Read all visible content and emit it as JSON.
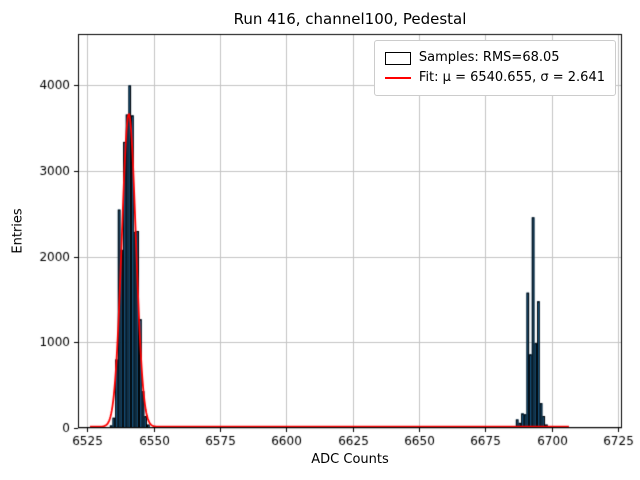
{
  "title": "Run 416, channel100, Pedestal",
  "axes": {
    "xlabel": "ADC Counts",
    "ylabel": "Entries"
  },
  "legend": {
    "samples_label": "Samples: RMS=68.05",
    "fit_label": "Fit: μ = 6540.655, σ = 2.641"
  },
  "colors": {
    "background": "#ffffff",
    "bar_fill": "#1f77b4",
    "bar_edge": "#000000",
    "fit_line": "#ff0000",
    "grid": "#c4c4c4",
    "axis": "#000000",
    "tick_text": "#000000"
  },
  "chart_data": {
    "type": "bar",
    "title": "Run 416, channel100, Pedestal",
    "xlabel": "ADC Counts",
    "ylabel": "Entries",
    "xlim": [
      6521.5,
      6726.5
    ],
    "ylim": [
      0,
      4600
    ],
    "xticks": [
      6525,
      6550,
      6575,
      6600,
      6625,
      6650,
      6675,
      6700,
      6725
    ],
    "yticks": [
      0,
      1000,
      2000,
      3000,
      4000
    ],
    "grid": true,
    "legend_position": "upper right",
    "bin_width": 1,
    "bars": [
      [
        6534,
        30
      ],
      [
        6535,
        120
      ],
      [
        6536,
        800
      ],
      [
        6537,
        2550
      ],
      [
        6538,
        2080
      ],
      [
        6539,
        3340
      ],
      [
        6540,
        3660
      ],
      [
        6541,
        4000
      ],
      [
        6542,
        3650
      ],
      [
        6543,
        2290
      ],
      [
        6544,
        2300
      ],
      [
        6545,
        1270
      ],
      [
        6546,
        430
      ],
      [
        6547,
        140
      ],
      [
        6548,
        40
      ],
      [
        6687,
        100
      ],
      [
        6688,
        60
      ],
      [
        6689,
        170
      ],
      [
        6690,
        160
      ],
      [
        6691,
        1580
      ],
      [
        6692,
        860
      ],
      [
        6693,
        2460
      ],
      [
        6694,
        990
      ],
      [
        6695,
        1480
      ],
      [
        6696,
        290
      ],
      [
        6697,
        140
      ],
      [
        6698,
        40
      ]
    ],
    "fit": {
      "mu": 6540.655,
      "sigma": 2.641,
      "amplitude": 3650,
      "baseline": 15,
      "x_range": [
        6526,
        6706.5
      ]
    }
  }
}
